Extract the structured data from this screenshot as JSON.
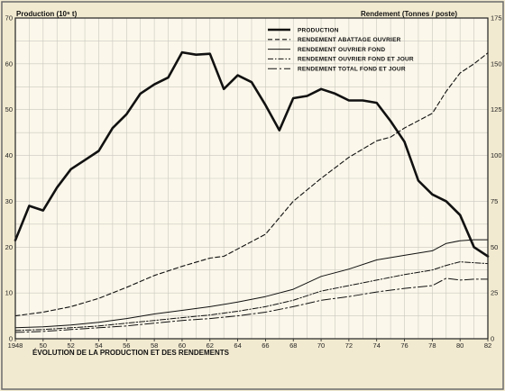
{
  "chart_data": {
    "type": "line",
    "title": "ÉVOLUTION DE LA PRODUCTION ET DES RENDEMENTS",
    "ylabel_left": "Production (10⁶ t)",
    "ylabel_right": "Rendement (Tonnes / poste)",
    "xlim": [
      1948,
      1982
    ],
    "ylim_left": [
      0,
      70
    ],
    "ylim_right": [
      0,
      175
    ],
    "x_ticks": [
      "1948",
      "50",
      "52",
      "54",
      "56",
      "58",
      "60",
      "62",
      "64",
      "66",
      "68",
      "70",
      "72",
      "74",
      "76",
      "78",
      "80",
      "82"
    ],
    "y_left_ticks": [
      0,
      10,
      20,
      30,
      40,
      50,
      60,
      70
    ],
    "y_right_ticks": [
      0,
      25,
      50,
      75,
      100,
      125,
      150,
      175
    ],
    "grid": true,
    "legend_position": "top-center",
    "series": [
      {
        "name": "PRODUCTION",
        "axis": "left",
        "style": "thick",
        "x": [
          1948,
          1949,
          1950,
          1951,
          1952,
          1953,
          1954,
          1955,
          1956,
          1957,
          1958,
          1959,
          1960,
          1961,
          1962,
          1963,
          1964,
          1965,
          1966,
          1967,
          1968,
          1969,
          1970,
          1971,
          1972,
          1973,
          1974,
          1975,
          1976,
          1977,
          1978,
          1979,
          1980,
          1981,
          1982
        ],
        "values": [
          21.5,
          29,
          28,
          33,
          37,
          39,
          41,
          46,
          49,
          53.5,
          55.5,
          57,
          62.5,
          62,
          62.2,
          54.5,
          57.5,
          56,
          51,
          45.5,
          52.5,
          53,
          54.5,
          53.5,
          52,
          52,
          51.5,
          47.5,
          43,
          34.5,
          31.5,
          30,
          27,
          20,
          18
        ]
      },
      {
        "name": "RENDEMENT ABATTAGE OUVRIER",
        "axis": "right",
        "style": "dashed",
        "x": [
          1948,
          1950,
          1952,
          1954,
          1956,
          1958,
          1960,
          1962,
          1963,
          1964,
          1965,
          1966,
          1968,
          1970,
          1972,
          1974,
          1975,
          1976,
          1978,
          1979,
          1980,
          1981,
          1982
        ],
        "values": [
          12.5,
          14.5,
          17.5,
          22,
          28,
          34.5,
          39.5,
          44,
          45,
          49,
          53,
          57,
          75,
          87.5,
          99,
          108,
          110,
          115,
          123,
          135,
          145,
          150,
          156
        ]
      },
      {
        "name": "RENDEMENT OUVRIER FOND",
        "axis": "right",
        "style": "solid",
        "x": [
          1948,
          1950,
          1952,
          1954,
          1956,
          1958,
          1960,
          1962,
          1964,
          1966,
          1968,
          1970,
          1972,
          1974,
          1976,
          1978,
          1979,
          1980,
          1981,
          1982
        ],
        "values": [
          6,
          6.5,
          7.5,
          9,
          11,
          13.5,
          15.5,
          17.5,
          20,
          23,
          27,
          34,
          38,
          43,
          45.5,
          48,
          52,
          53.5,
          54,
          54
        ]
      },
      {
        "name": "RENDEMENT OUVRIER FOND ET JOUR",
        "axis": "right",
        "style": "dash-dot",
        "x": [
          1948,
          1950,
          1952,
          1954,
          1956,
          1958,
          1960,
          1962,
          1964,
          1966,
          1968,
          1970,
          1972,
          1974,
          1976,
          1978,
          1979,
          1980,
          1981,
          1982
        ],
        "values": [
          4.5,
          5,
          6,
          7,
          8.5,
          10,
          11.5,
          13,
          15,
          17.5,
          21,
          26,
          29,
          32,
          35,
          37.5,
          40,
          42,
          41.5,
          41
        ]
      },
      {
        "name": "RENDEMENT TOTAL FOND ET JOUR",
        "axis": "right",
        "style": "dash-dot-long",
        "x": [
          1948,
          1950,
          1952,
          1954,
          1956,
          1958,
          1960,
          1962,
          1964,
          1966,
          1968,
          1970,
          1972,
          1974,
          1976,
          1978,
          1979,
          1980,
          1981,
          1982
        ],
        "values": [
          3.5,
          4,
          5,
          6,
          7,
          8.5,
          10,
          11,
          12.5,
          14.5,
          17.5,
          21,
          23,
          25.5,
          27.5,
          29,
          33,
          32,
          32.5,
          32.5
        ]
      }
    ]
  }
}
